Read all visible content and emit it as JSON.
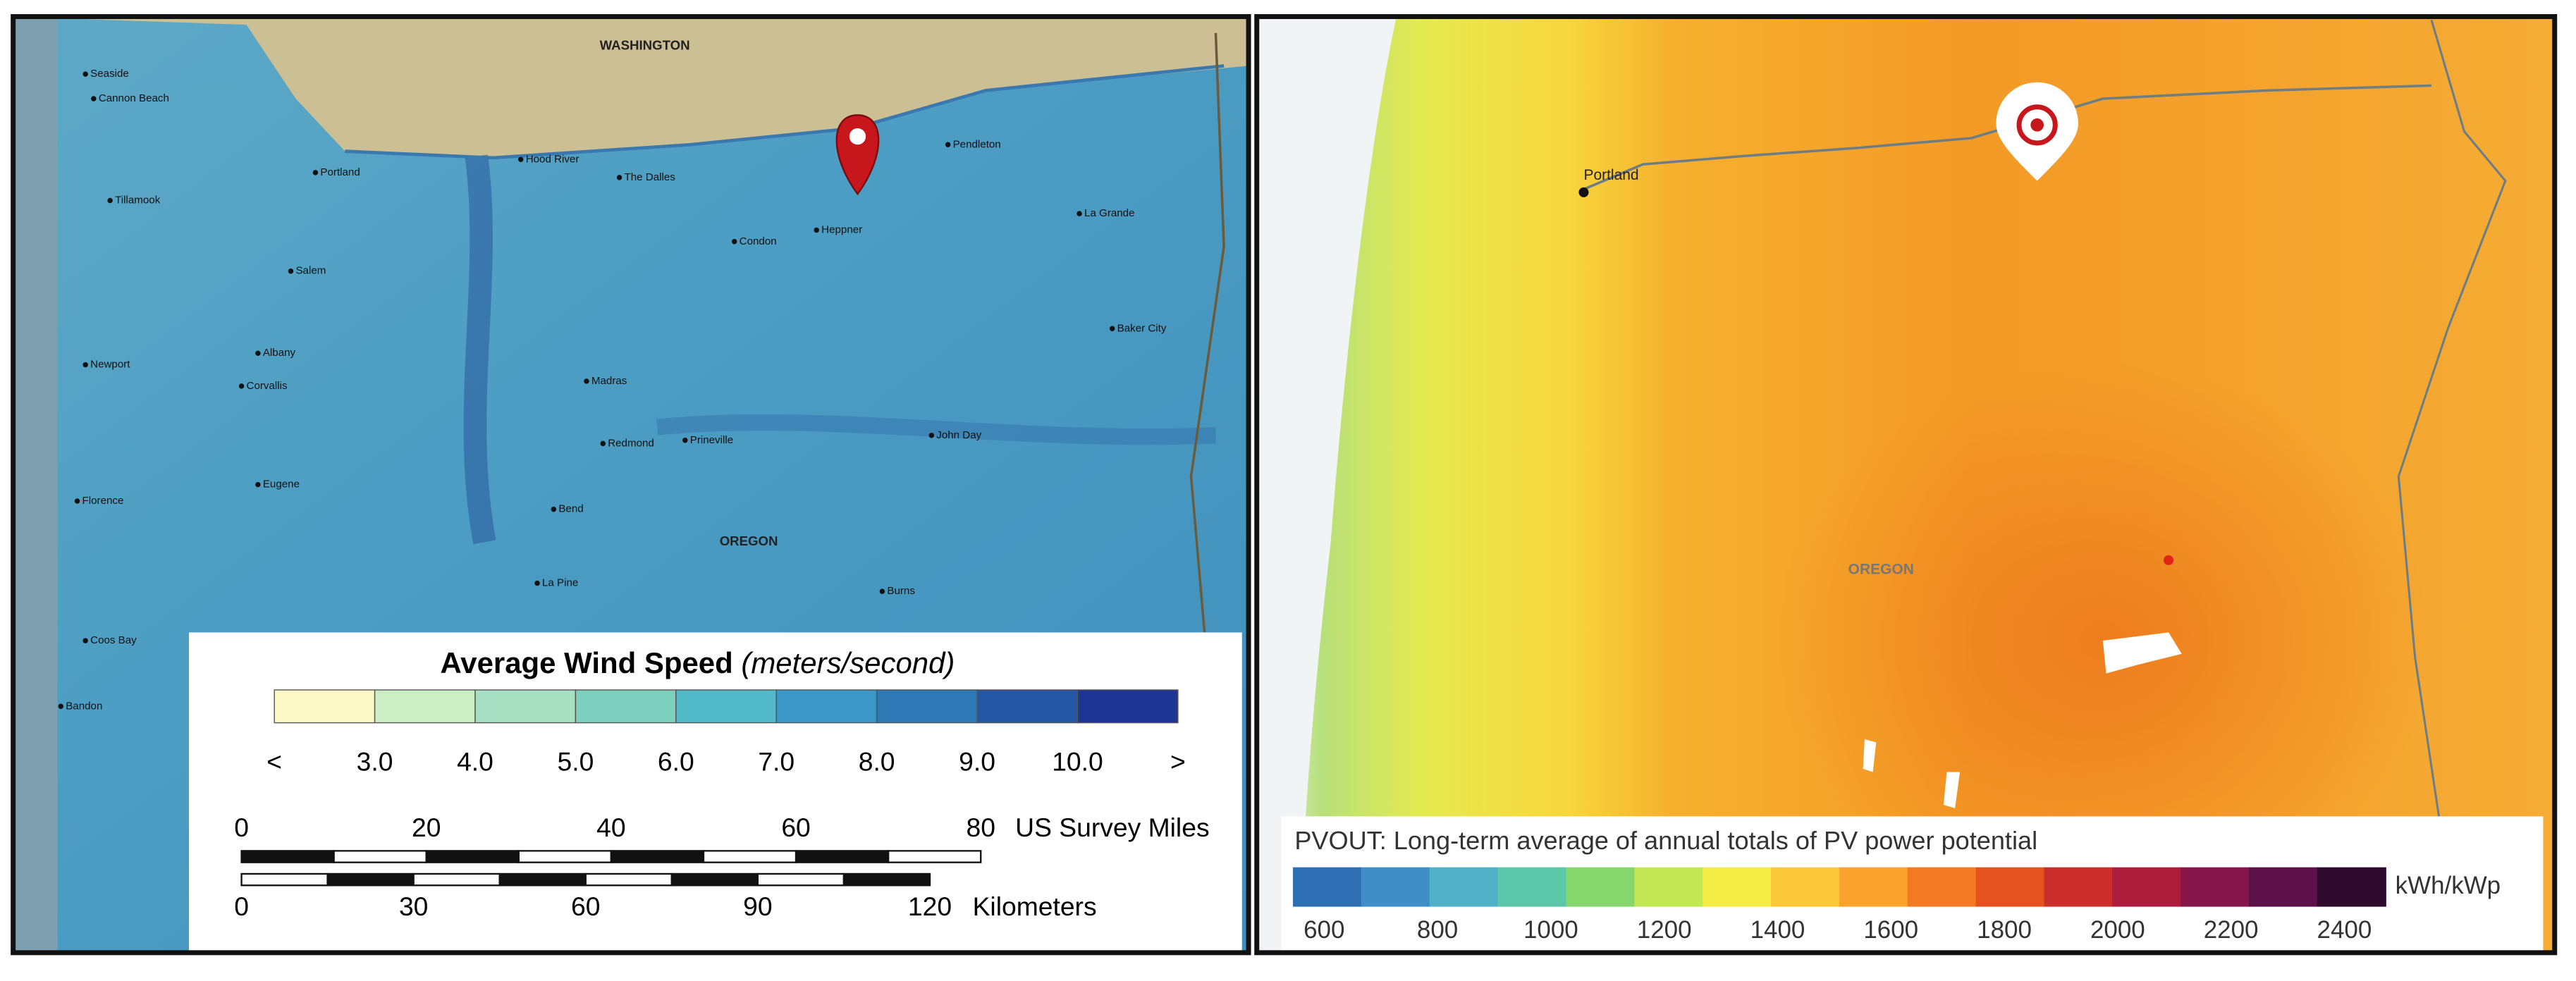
{
  "left_map": {
    "labels": {
      "washington": "WASHINGTON",
      "oregon": "OREGON",
      "cities": [
        "Seaside",
        "Cannon Beach",
        "Tillamook",
        "Newport",
        "Florence",
        "Coos Bay",
        "Bandon",
        "Portland",
        "Salem",
        "Albany",
        "Corvallis",
        "Eugene",
        "Hood River",
        "The Dalles",
        "Condon",
        "Heppner",
        "Pendleton",
        "La Grande",
        "Baker City",
        "John Day",
        "Madras",
        "Redmond",
        "Prineville",
        "Bend",
        "La Pine",
        "Burns"
      ]
    },
    "legend": {
      "title": "Average Wind Speed",
      "title_unit": "(meters/second)",
      "colors": [
        "#fdf8c8",
        "#cdeec4",
        "#a6dfc1",
        "#7fcfbf",
        "#52b9c8",
        "#3b98c6",
        "#2f78b6",
        "#2656a6",
        "#1f3593"
      ],
      "tick_labels": [
        "<",
        "3.0",
        "4.0",
        "5.0",
        "6.0",
        "7.0",
        "8.0",
        "9.0",
        "10.0",
        ">"
      ]
    },
    "scale_bar": {
      "miles_ticks": [
        "0",
        "20",
        "40",
        "60",
        "80"
      ],
      "miles_unit": "US Survey Miles",
      "km_ticks": [
        "0",
        "30",
        "60",
        "90",
        "120"
      ],
      "km_unit": "Kilometers"
    }
  },
  "right_map": {
    "labels": {
      "city": "Portland",
      "state": "OREGON"
    },
    "legend": {
      "title": "PVOUT: Long-term average of annual totals of PV power potential",
      "unit": "kWh/kWp",
      "tick_labels": [
        "600",
        "800",
        "1000",
        "1200",
        "1400",
        "1600",
        "1800",
        "2000",
        "2200",
        "2400"
      ],
      "colors": [
        "#2f6fb3",
        "#3f8fc6",
        "#4fb0c8",
        "#5cc6a8",
        "#86d66e",
        "#c3e655",
        "#f2ec45",
        "#fbc93a",
        "#f9a22c",
        "#f27a22",
        "#e4521f",
        "#cc2e2b",
        "#ab1d3b",
        "#86164a",
        "#5c1148",
        "#2e0a2c"
      ]
    }
  }
}
